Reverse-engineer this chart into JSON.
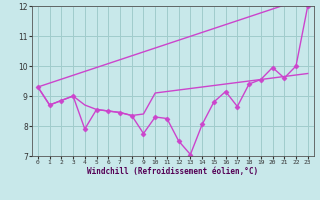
{
  "xlabel": "Windchill (Refroidissement éolien,°C)",
  "x_all": [
    0,
    1,
    2,
    3,
    4,
    5,
    6,
    7,
    8,
    9,
    10,
    11,
    12,
    13,
    14,
    15,
    16,
    17,
    18,
    19,
    20,
    21,
    22,
    23
  ],
  "line_straight": [
    9.3,
    9.43,
    9.56,
    9.69,
    9.82,
    9.95,
    10.08,
    10.21,
    10.34,
    10.47,
    10.6,
    10.73,
    10.86,
    10.99,
    11.12,
    11.25,
    11.38,
    11.51,
    11.64,
    11.77,
    11.9,
    12.03,
    12.16,
    12.0
  ],
  "line_main": [
    9.3,
    8.7,
    8.85,
    9.0,
    7.9,
    8.55,
    8.5,
    8.45,
    8.35,
    7.75,
    8.3,
    8.25,
    7.5,
    7.05,
    8.05,
    8.8,
    9.15,
    8.65,
    9.4,
    9.55,
    9.95,
    9.6,
    10.0,
    12.0
  ],
  "line_short": [
    9.3,
    8.7,
    8.85,
    9.0,
    8.7,
    8.55,
    8.5,
    8.45,
    8.35,
    8.4,
    9.1,
    9.15,
    9.2,
    9.25,
    9.3,
    9.35,
    9.4,
    9.45,
    9.5,
    9.55,
    9.6,
    9.65,
    9.7,
    9.75
  ],
  "line_color": "#cc44cc",
  "bg_color": "#c8e8ea",
  "grid_color": "#a0cccc",
  "ylim": [
    7,
    12
  ],
  "yticks": [
    7,
    8,
    9,
    10,
    11,
    12
  ],
  "xticks": [
    0,
    1,
    2,
    3,
    4,
    5,
    6,
    7,
    8,
    9,
    10,
    11,
    12,
    13,
    14,
    15,
    16,
    17,
    18,
    19,
    20,
    21,
    22,
    23
  ],
  "marker": "D",
  "markersize": 2.5,
  "linewidth": 1.0
}
